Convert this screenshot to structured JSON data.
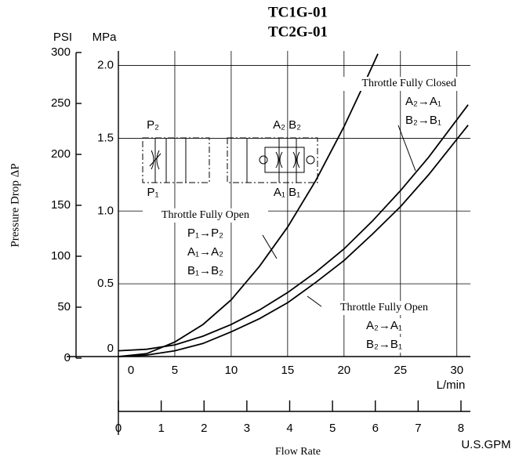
{
  "chart_data": {
    "type": "line",
    "title": "TC1G-01",
    "subtitle": "TC2G-01",
    "ylabel": "Pressure Drop ΔP",
    "yunit": "MPa",
    "y2unit": "PSI",
    "xlabel": "Flow Rate",
    "xunit": "L/min",
    "x2unit": "U.S.GPM",
    "ylim": [
      0,
      2.1
    ],
    "yticks": [
      {
        "value": 0,
        "label": "0"
      },
      0.5,
      {
        "value": 1,
        "label": "1.0"
      },
      1.5,
      {
        "value": 2,
        "label": "2.0"
      }
    ],
    "y2lim": [
      0,
      300
    ],
    "y2ticks": [
      0,
      50,
      100,
      150,
      200,
      250,
      300
    ],
    "xlim": [
      0,
      31.2
    ],
    "xticks": [
      0,
      5,
      10,
      15,
      20,
      25,
      30
    ],
    "x2lim": [
      0,
      8.22
    ],
    "x2ticks": [
      0,
      1,
      2,
      3,
      4,
      5,
      6,
      7,
      8
    ],
    "grid": true,
    "series": [
      {
        "color": "#000000",
        "x": [
          0,
          2.5,
          5,
          7.5,
          10,
          12.5,
          15,
          17.5,
          20,
          22,
          23
        ],
        "values": [
          0,
          0.02,
          0.1,
          0.22,
          0.39,
          0.62,
          0.89,
          1.21,
          1.58,
          1.91,
          2.08
        ]
      },
      {
        "color": "#000000",
        "x": [
          0,
          2.5,
          5,
          7.5,
          10,
          12.5,
          15,
          17.5,
          20,
          22.5,
          25,
          27.5,
          31
        ],
        "values": [
          0.04,
          0.05,
          0.08,
          0.14,
          0.22,
          0.32,
          0.44,
          0.58,
          0.74,
          0.93,
          1.14,
          1.37,
          1.73
        ]
      },
      {
        "color": "#000000",
        "x": [
          0,
          2.5,
          5,
          7.5,
          10,
          12.5,
          15,
          17.5,
          20,
          22.5,
          25,
          27.5,
          31
        ],
        "values": [
          0,
          0.01,
          0.04,
          0.09,
          0.17,
          0.26,
          0.37,
          0.51,
          0.66,
          0.84,
          1.03,
          1.25,
          1.59
        ]
      }
    ],
    "annotations": [
      {
        "title": "Throttle Fully Closed",
        "lines": [
          "A₂→A₁",
          "B₂→B₁"
        ]
      },
      {
        "title": "Throttle Fully Open",
        "lines": [
          "P₁→P₂",
          "A₁→A₂",
          "B₁→B₂"
        ]
      },
      {
        "title": "Throttle Fully Open",
        "lines": [
          "A₂→A₁",
          "B₂→B₁"
        ]
      }
    ],
    "symbol_labels": [
      "P₂",
      "P₁",
      "A₂ B₂",
      "A₁ B₁"
    ]
  }
}
